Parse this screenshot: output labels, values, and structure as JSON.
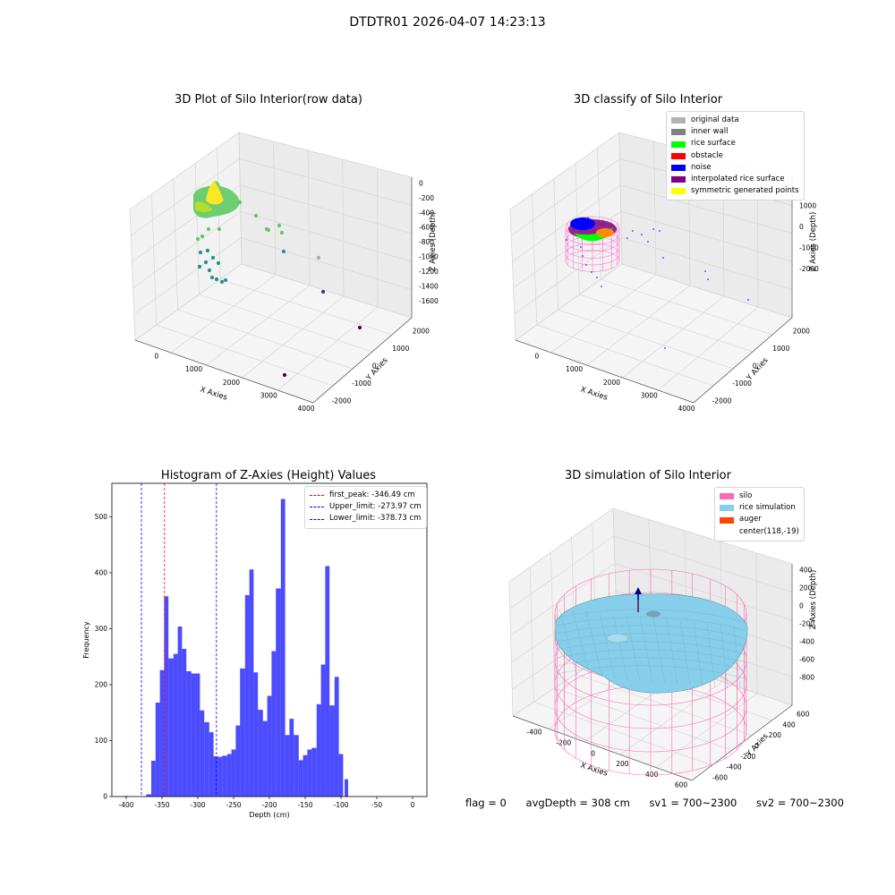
{
  "figure": {
    "title": "DTDTR01 2026-04-07 14:23:13"
  },
  "status": {
    "flag": "flag = 0",
    "avg_depth": "avgDepth = 308 cm",
    "sv1": "sv1 = 700~2300",
    "sv2": "sv2 = 700~2300"
  },
  "chart_data": [
    {
      "type": "scatter",
      "title": "3D Plot of Silo Interior(row data)",
      "xlabel": "X Axies",
      "ylabel": "Y Axies",
      "zlabel": "Z Axies (Depth)",
      "x_ticks": [
        "0",
        "1000",
        "2000",
        "3000",
        "4000"
      ],
      "y_ticks": [
        "-2000",
        "-1000",
        "0",
        "1000",
        "2000"
      ],
      "z_ticks": [
        "0",
        "-200",
        "-400",
        "-600",
        "-800",
        "-1000",
        "-1200",
        "-1400",
        "-1600"
      ],
      "grid": true,
      "colors": {
        "high": "#fde725",
        "mid": "#5ec962",
        "low": "#21918c",
        "lowest": "#440154"
      }
    },
    {
      "type": "scatter",
      "title": "3D classify of Silo Interior",
      "xlabel": "X Axies",
      "ylabel": "Y Axies",
      "zlabel": "Z Axies (Depth)",
      "x_ticks": [
        "0",
        "1000",
        "2000",
        "3000",
        "4000"
      ],
      "y_ticks": [
        "-2000",
        "-1000",
        "0",
        "1000",
        "2000"
      ],
      "z_ticks": [
        "1000",
        "0",
        "-1000",
        "-2000"
      ],
      "grid": true,
      "legend_position": "top-right",
      "legend": [
        {
          "label": "original data",
          "color": "#b3b3b3"
        },
        {
          "label": "inner wall",
          "color": "#808080"
        },
        {
          "label": "rice surface",
          "color": "#00ff00"
        },
        {
          "label": "obstacle",
          "color": "#ff0000"
        },
        {
          "label": "noise",
          "color": "#0000ff"
        },
        {
          "label": "interpolated rice surface",
          "color": "#800080"
        },
        {
          "label": "symmetric generated points",
          "color": "#ffff00"
        }
      ]
    },
    {
      "type": "bar",
      "title": "Histogram of Z-Axies (Height) Values",
      "xlabel": "Depth (cm)",
      "ylabel": "Frequency",
      "xlim": [
        -420,
        20
      ],
      "ylim": [
        0,
        560
      ],
      "x_ticks": [
        -400,
        -350,
        -300,
        -250,
        -200,
        -150,
        -100,
        -50,
        0
      ],
      "y_ticks": [
        0,
        100,
        200,
        300,
        400,
        500
      ],
      "bar_color": "#0000ff",
      "bins": [
        {
          "x0": -402,
          "x1": -397,
          "value": 1
        },
        {
          "x0": -372,
          "x1": -365,
          "value": 4
        },
        {
          "x0": -365,
          "x1": -359,
          "value": 64
        },
        {
          "x0": -359,
          "x1": -353,
          "value": 168
        },
        {
          "x0": -353,
          "x1": -347,
          "value": 226
        },
        {
          "x0": -347,
          "x1": -341,
          "value": 358
        },
        {
          "x0": -341,
          "x1": -334,
          "value": 247
        },
        {
          "x0": -334,
          "x1": -328,
          "value": 255
        },
        {
          "x0": -328,
          "x1": -322,
          "value": 304
        },
        {
          "x0": -322,
          "x1": -316,
          "value": 264
        },
        {
          "x0": -316,
          "x1": -309,
          "value": 224
        },
        {
          "x0": -309,
          "x1": -303,
          "value": 220
        },
        {
          "x0": -303,
          "x1": -297,
          "value": 220
        },
        {
          "x0": -297,
          "x1": -291,
          "value": 154
        },
        {
          "x0": -291,
          "x1": -284,
          "value": 133
        },
        {
          "x0": -284,
          "x1": -278,
          "value": 115
        },
        {
          "x0": -278,
          "x1": -272,
          "value": 72
        },
        {
          "x0": -272,
          "x1": -266,
          "value": 71
        },
        {
          "x0": -266,
          "x1": -259,
          "value": 73
        },
        {
          "x0": -259,
          "x1": -253,
          "value": 76
        },
        {
          "x0": -253,
          "x1": -247,
          "value": 84
        },
        {
          "x0": -247,
          "x1": -241,
          "value": 127
        },
        {
          "x0": -241,
          "x1": -234,
          "value": 229
        },
        {
          "x0": -234,
          "x1": -228,
          "value": 360
        },
        {
          "x0": -228,
          "x1": -222,
          "value": 406
        },
        {
          "x0": -222,
          "x1": -216,
          "value": 222
        },
        {
          "x0": -216,
          "x1": -209,
          "value": 155
        },
        {
          "x0": -209,
          "x1": -203,
          "value": 135
        },
        {
          "x0": -203,
          "x1": -197,
          "value": 180
        },
        {
          "x0": -197,
          "x1": -191,
          "value": 260
        },
        {
          "x0": -191,
          "x1": -184,
          "value": 372
        },
        {
          "x0": -184,
          "x1": -178,
          "value": 532
        },
        {
          "x0": -178,
          "x1": -172,
          "value": 110
        },
        {
          "x0": -172,
          "x1": -166,
          "value": 139
        },
        {
          "x0": -166,
          "x1": -159,
          "value": 110
        },
        {
          "x0": -159,
          "x1": -153,
          "value": 65
        },
        {
          "x0": -153,
          "x1": -147,
          "value": 74
        },
        {
          "x0": -147,
          "x1": -141,
          "value": 84
        },
        {
          "x0": -141,
          "x1": -134,
          "value": 87
        },
        {
          "x0": -134,
          "x1": -128,
          "value": 165
        },
        {
          "x0": -128,
          "x1": -122,
          "value": 236
        },
        {
          "x0": -122,
          "x1": -116,
          "value": 412
        },
        {
          "x0": -116,
          "x1": -109,
          "value": 163
        },
        {
          "x0": -109,
          "x1": -103,
          "value": 214
        },
        {
          "x0": -103,
          "x1": -97,
          "value": 76
        },
        {
          "x0": -95,
          "x1": -90,
          "value": 31
        }
      ],
      "vlines": [
        {
          "label": "first_peak: -346.49 cm",
          "x": -346.49,
          "color": "#ff0000"
        },
        {
          "label": "Upper_limit: -273.97 cm",
          "x": -273.97,
          "color": "#0000ff"
        },
        {
          "label": "Lower_limit: -378.73 cm",
          "x": -378.73,
          "color": "#0000ff"
        }
      ],
      "legend_position": "top-right"
    },
    {
      "type": "surface",
      "title": "3D simulation of Silo Interior",
      "xlabel": "X Axies",
      "ylabel": "Y Axies",
      "zlabel": "Z Axies (Depth)",
      "x_ticks": [
        "-400",
        "-200",
        "0",
        "200",
        "400",
        "600"
      ],
      "y_ticks": [
        "-600",
        "-400",
        "-200",
        "0",
        "200",
        "400",
        "600"
      ],
      "z_ticks": [
        "400",
        "200",
        "0",
        "-200",
        "-400",
        "-600",
        "-800"
      ],
      "grid": true,
      "legend_position": "top-right",
      "legend": [
        {
          "label": "silo",
          "color": "#ff69b4"
        },
        {
          "label": "rice simulation",
          "color": "#87ceeb"
        },
        {
          "label": "auger",
          "color": "#ff4500"
        },
        {
          "label": "center(118,-19)",
          "color": ""
        }
      ]
    }
  ]
}
